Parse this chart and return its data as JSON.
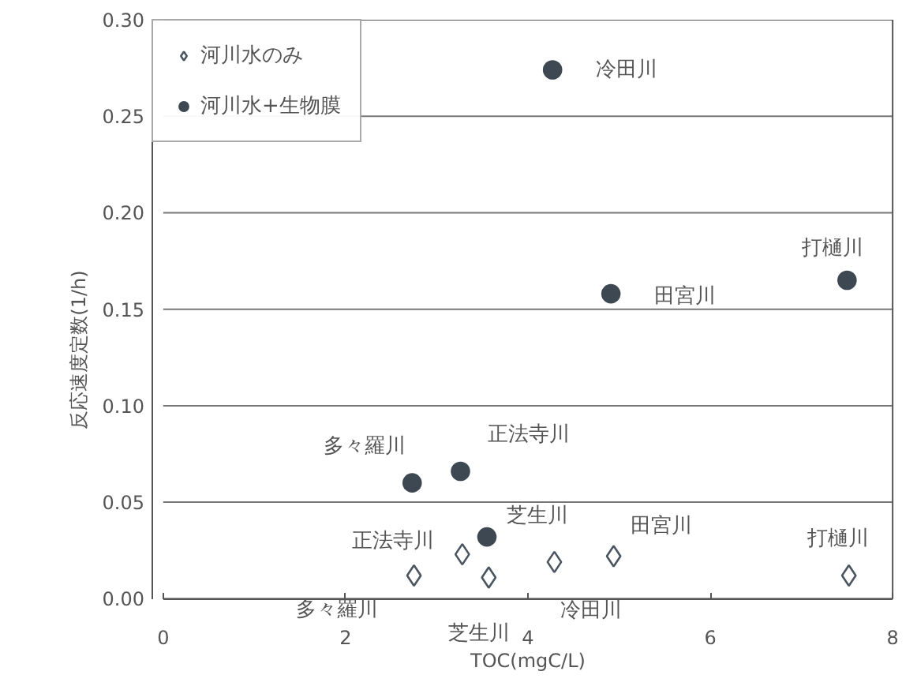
{
  "chart_data": {
    "type": "scatter",
    "xlabel": "TOC(mgC/L)",
    "ylabel": "反応速度定数(1/h)",
    "xlim": [
      0,
      8
    ],
    "xticks": [
      0,
      2,
      4,
      6,
      8
    ],
    "ylim": [
      0,
      0.3
    ],
    "yticks": [
      {
        "value": 0,
        "label": "0.00"
      },
      {
        "value": 0.05,
        "label": "0.05"
      },
      {
        "value": 0.1,
        "label": "0.10"
      },
      {
        "value": 0.15,
        "label": "0.15"
      },
      {
        "value": 0.2,
        "label": "0.20"
      },
      {
        "value": 0.25,
        "label": "0.25"
      },
      {
        "value": 0.3,
        "label": "0.30"
      }
    ],
    "grid": "y",
    "legend": "top left",
    "series": [
      {
        "name": "河川水のみ",
        "color": "#4a5560",
        "marker": "diamond",
        "x": [
          2.75,
          3.28,
          3.57,
          4.29,
          4.94,
          7.52
        ],
        "values": [
          0.012,
          0.023,
          0.011,
          0.019,
          0.022,
          0.012
        ]
      },
      {
        "name": "河川水+生物膜",
        "color": "#3e4852",
        "marker": "circle",
        "x": [
          4.27,
          4.91,
          7.5,
          2.73,
          3.26,
          3.55
        ],
        "values": [
          0.274,
          0.158,
          0.165,
          0.06,
          0.066,
          0.032
        ]
      }
    ],
    "annotations": [
      {
        "text": "冷田川",
        "x": 4.27,
        "y": 0.274
      },
      {
        "text": "田宮川",
        "x": 4.91,
        "y": 0.158
      },
      {
        "text": "打樋川",
        "x": 7.5,
        "y": 0.165
      },
      {
        "text": "多々羅川",
        "x": 2.73,
        "y": 0.06
      },
      {
        "text": "正法寺川",
        "x": 3.26,
        "y": 0.066
      },
      {
        "text": "芝生川",
        "x": 3.55,
        "y": 0.032
      },
      {
        "text": "正法寺川",
        "x": 3.28,
        "y": 0.023
      },
      {
        "text": "多々羅川",
        "x": 2.75,
        "y": 0.012
      },
      {
        "text": "芝生川",
        "x": 3.57,
        "y": 0.011
      },
      {
        "text": "冷田川",
        "x": 4.29,
        "y": 0.019
      },
      {
        "text": "田宮川",
        "x": 4.94,
        "y": 0.022
      },
      {
        "text": "打樋川",
        "x": 7.52,
        "y": 0.012
      }
    ]
  }
}
